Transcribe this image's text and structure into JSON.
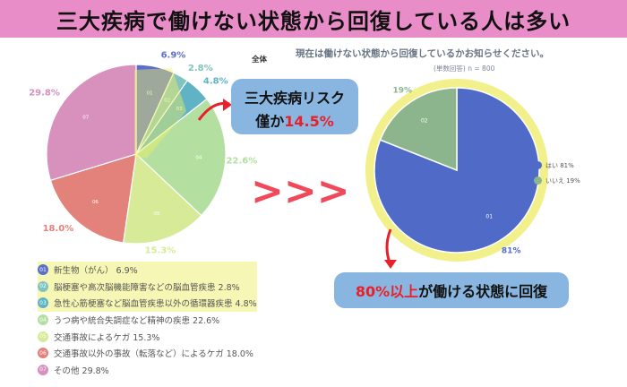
{
  "header": {
    "title": "三大疾病で働けない状態から回復している人は多い"
  },
  "left_chart_title": "全体",
  "right_chart_title": "現在は働けない状態から回復しているかお知らせください。",
  "right_chart_subtitle": "(単数回答) n = 800",
  "callout_risk": {
    "line1": "三大疾病リスク",
    "line2_prefix": "僅か",
    "line2_value": "14.5%"
  },
  "callout_recover": {
    "value": "80%以上",
    "suffix": "が働ける状態に回復"
  },
  "arrow_symbol": ">>>",
  "chart_data": [
    {
      "type": "pie",
      "title": "全体",
      "slices": [
        {
          "id": "01",
          "label": "新生物（がん）",
          "value": 6.9,
          "value_label": "6.9%",
          "color": "#5b6fc8"
        },
        {
          "id": "02",
          "label": "脳梗塞や高次脳機能障害などの脳血管疾患",
          "value": 2.8,
          "value_label": "2.8%",
          "color": "#82c2bf"
        },
        {
          "id": "03",
          "label": "急性心筋梗塞など脳血管疾患以外の循環器疾患",
          "value": 4.8,
          "value_label": "4.8%",
          "color": "#5fb3c4"
        },
        {
          "id": "04",
          "label": "うつ病や統合失調症など精神の疾患",
          "value": 22.6,
          "value_label": "22.6%",
          "color": "#b3e0a0"
        },
        {
          "id": "05",
          "label": "交通事故によるケガ",
          "value": 15.3,
          "value_label": "15.3%",
          "color": "#d6ea98"
        },
        {
          "id": "06",
          "label": "交通事故以外の事故（転落など）によるケガ",
          "value": 18.0,
          "value_label": "18.0%",
          "color": "#e3827a"
        },
        {
          "id": "07",
          "label": "その他",
          "value": 29.8,
          "value_label": "29.8%",
          "color": "#d891bd"
        }
      ],
      "legend_items": [
        "新生物（がん） 6.9%",
        "脳梗塞や高次脳機能障害などの脳血管疾患 2.8%",
        "急性心筋梗塞など脳血管疾患以外の循環器疾患 4.8%",
        "うつ病や統合失調症など精神の疾患 22.6%",
        "交通事故によるケガ 15.3%",
        "交通事故以外の事故（転落など）によるケガ 18.0%",
        "その他 29.8%"
      ],
      "highlighted_ids": [
        "01",
        "02",
        "03"
      ]
    },
    {
      "type": "pie",
      "title": "現在は働けない状態から回復しているかお知らせください。",
      "slices": [
        {
          "id": "01",
          "label": "はい",
          "value": 81,
          "value_label": "81%",
          "color": "#4f6bc7"
        },
        {
          "id": "02",
          "label": "いいえ",
          "value": 19,
          "value_label": "19%",
          "color": "#8cb58e"
        }
      ],
      "legend_items": [
        "はい 81%",
        "いいえ 19%"
      ]
    }
  ]
}
